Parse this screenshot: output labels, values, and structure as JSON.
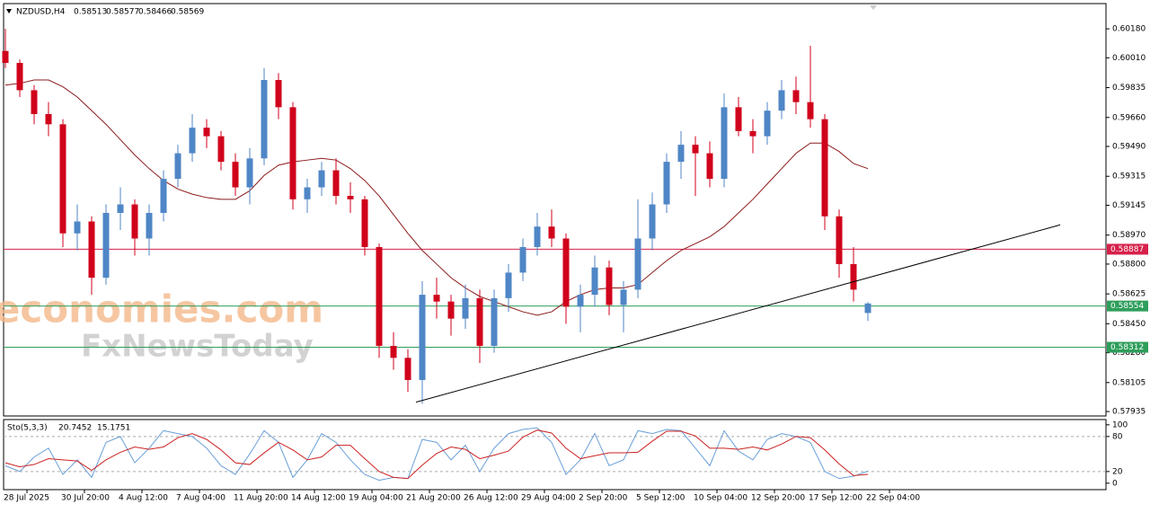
{
  "chart_data": {
    "type": "candlestick",
    "symbol": "NZDUSD,H4",
    "watermark": [
      "economies.com",
      "FxNewsToday"
    ],
    "up_color": "#4f86c6",
    "down_color": "#d0021b",
    "ohlc": [
      [
        0.6005,
        0.6018,
        0.5995,
        0.5998
      ],
      [
        0.5998,
        0.6,
        0.5978,
        0.5982
      ],
      [
        0.5982,
        0.5985,
        0.5962,
        0.5968
      ],
      [
        0.5968,
        0.5975,
        0.5955,
        0.5962
      ],
      [
        0.5962,
        0.5965,
        0.589,
        0.5898
      ],
      [
        0.5898,
        0.5915,
        0.5888,
        0.5905
      ],
      [
        0.5905,
        0.5908,
        0.5862,
        0.5872
      ],
      [
        0.5872,
        0.5915,
        0.5868,
        0.591
      ],
      [
        0.591,
        0.5925,
        0.59,
        0.5915
      ],
      [
        0.5915,
        0.5918,
        0.5885,
        0.5895
      ],
      [
        0.5895,
        0.5915,
        0.5885,
        0.591
      ],
      [
        0.591,
        0.5935,
        0.5905,
        0.593
      ],
      [
        0.593,
        0.595,
        0.5925,
        0.5945
      ],
      [
        0.5945,
        0.5968,
        0.594,
        0.596
      ],
      [
        0.596,
        0.5965,
        0.5948,
        0.5955
      ],
      [
        0.5955,
        0.5958,
        0.5935,
        0.594
      ],
      [
        0.594,
        0.5945,
        0.592,
        0.5925
      ],
      [
        0.5925,
        0.5948,
        0.5915,
        0.5942
      ],
      [
        0.5942,
        0.5995,
        0.5938,
        0.5988
      ],
      [
        0.5988,
        0.5992,
        0.5965,
        0.5972
      ],
      [
        0.5972,
        0.5975,
        0.5912,
        0.5918
      ],
      [
        0.5918,
        0.593,
        0.591,
        0.5925
      ],
      [
        0.5925,
        0.594,
        0.592,
        0.5935
      ],
      [
        0.5935,
        0.5942,
        0.5915,
        0.592
      ],
      [
        0.592,
        0.5928,
        0.591,
        0.5918
      ],
      [
        0.5918,
        0.592,
        0.5885,
        0.589
      ],
      [
        0.589,
        0.5892,
        0.5825,
        0.5832
      ],
      [
        0.5832,
        0.584,
        0.5818,
        0.5825
      ],
      [
        0.5825,
        0.583,
        0.5805,
        0.5812
      ],
      [
        0.5812,
        0.587,
        0.5798,
        0.5862
      ],
      [
        0.5862,
        0.5872,
        0.5848,
        0.5858
      ],
      [
        0.5858,
        0.5862,
        0.5838,
        0.5848
      ],
      [
        0.5848,
        0.5868,
        0.5842,
        0.586
      ],
      [
        0.586,
        0.5865,
        0.5822,
        0.5832
      ],
      [
        0.5832,
        0.5865,
        0.5828,
        0.586
      ],
      [
        0.586,
        0.588,
        0.5852,
        0.5875
      ],
      [
        0.5875,
        0.5895,
        0.587,
        0.589
      ],
      [
        0.589,
        0.591,
        0.5885,
        0.5902
      ],
      [
        0.5902,
        0.5912,
        0.589,
        0.5895
      ],
      [
        0.5895,
        0.5898,
        0.5845,
        0.5855
      ],
      [
        0.5855,
        0.5868,
        0.584,
        0.5862
      ],
      [
        0.5862,
        0.5885,
        0.5855,
        0.5878
      ],
      [
        0.5878,
        0.5882,
        0.585,
        0.5856
      ],
      [
        0.5856,
        0.587,
        0.584,
        0.5865
      ],
      [
        0.5865,
        0.5918,
        0.586,
        0.5895
      ],
      [
        0.5895,
        0.5922,
        0.5888,
        0.5915
      ],
      [
        0.5915,
        0.5945,
        0.591,
        0.594
      ],
      [
        0.594,
        0.5958,
        0.593,
        0.595
      ],
      [
        0.595,
        0.5955,
        0.592,
        0.5945
      ],
      [
        0.5945,
        0.5952,
        0.5925,
        0.593
      ],
      [
        0.593,
        0.598,
        0.5925,
        0.5972
      ],
      [
        0.5972,
        0.5978,
        0.5955,
        0.5958
      ],
      [
        0.5958,
        0.5965,
        0.5945,
        0.5955
      ],
      [
        0.5955,
        0.5975,
        0.595,
        0.597
      ],
      [
        0.597,
        0.5988,
        0.5965,
        0.5982
      ],
      [
        0.5982,
        0.599,
        0.5968,
        0.5975
      ],
      [
        0.5975,
        0.6008,
        0.596,
        0.5965
      ],
      [
        0.5965,
        0.5968,
        0.59,
        0.5908
      ],
      [
        0.5908,
        0.5912,
        0.5872,
        0.588
      ],
      [
        0.588,
        0.589,
        0.5858,
        0.5865
      ],
      [
        0.58513,
        0.58577,
        0.58466,
        0.58569
      ]
    ],
    "ma": {
      "color": "#8b1a1a",
      "values": [
        0.5985,
        0.5986,
        0.5988,
        0.5988,
        0.5984,
        0.5978,
        0.597,
        0.5962,
        0.5953,
        0.5944,
        0.5936,
        0.5929,
        0.5924,
        0.5921,
        0.5919,
        0.5918,
        0.5918,
        0.5923,
        0.5932,
        0.5938,
        0.594,
        0.5941,
        0.5942,
        0.5941,
        0.5936,
        0.5929,
        0.592,
        0.5909,
        0.5898,
        0.5888,
        0.588,
        0.5872,
        0.5866,
        0.5861,
        0.5858,
        0.5855,
        0.5852,
        0.585,
        0.5852,
        0.5858,
        0.5862,
        0.5865,
        0.5866,
        0.5866,
        0.5868,
        0.5875,
        0.5882,
        0.5888,
        0.5892,
        0.5896,
        0.5902,
        0.591,
        0.5918,
        0.5927,
        0.5936,
        0.5945,
        0.5951,
        0.5951,
        0.5946,
        0.5939,
        0.5936
      ]
    },
    "trendline": {
      "color": "#000000",
      "x": [
        28.56,
        73.38
      ],
      "y": [
        0.5799,
        0.5903
      ]
    },
    "levels": [
      {
        "value": 0.58887,
        "color": "#d6204a"
      },
      {
        "value": 0.58554,
        "color": "#2e9e5b"
      },
      {
        "value": 0.58312,
        "color": "#2e9e5b"
      }
    ],
    "xlim": [
      -0.125,
      76.5625
    ],
    "ylim": [
      0.57909,
      0.60328
    ],
    "yticks": [
      {
        "value": 0.6018,
        "label": "0.60180"
      },
      {
        "value": 0.6001,
        "label": "0.60010"
      },
      {
        "value": 0.59835,
        "label": "0.59835"
      },
      {
        "value": 0.5966,
        "label": "0.59660"
      },
      {
        "value": 0.5949,
        "label": "0.59490"
      },
      {
        "value": 0.59315,
        "label": "0.59315"
      },
      {
        "value": 0.59145,
        "label": "0.59145"
      },
      {
        "value": 0.5897,
        "label": "0.58970"
      },
      {
        "value": 0.588,
        "label": "0.58800"
      },
      {
        "value": 0.58625,
        "label": "0.58625"
      },
      {
        "value": 0.5845,
        "label": "0.58450"
      },
      {
        "value": 0.5828,
        "label": "0.58280"
      },
      {
        "value": 0.58105,
        "label": "0.58105"
      },
      {
        "value": 0.57935,
        "label": "0.57935"
      }
    ],
    "xticks": [
      {
        "value": 1.5,
        "label": "28 Jul 2025"
      },
      {
        "value": 5.5,
        "label": "30 Jul 20:00"
      },
      {
        "value": 9.5,
        "label": "4 Aug 12:00"
      },
      {
        "value": 13.5,
        "label": "7 Aug 04:00"
      },
      {
        "value": 17.5,
        "label": "11 Aug 20:00"
      },
      {
        "value": 21.5,
        "label": "14 Aug 12:00"
      },
      {
        "value": 25.5,
        "label": "19 Aug 04:00"
      },
      {
        "value": 29.5,
        "label": "21 Aug 20:00"
      },
      {
        "value": 33.5,
        "label": "26 Aug 12:00"
      },
      {
        "value": 37.5,
        "label": "29 Aug 04:00"
      },
      {
        "value": 41.5,
        "label": "2 Sep 20:00"
      },
      {
        "value": 45.5,
        "label": "5 Sep 12:00"
      },
      {
        "value": 49.5,
        "label": "10 Sep 04:00"
      },
      {
        "value": 53.5,
        "label": "12 Sep 20:00"
      },
      {
        "value": 57.5,
        "label": "17 Sep 12:00"
      },
      {
        "value": 61.5,
        "label": "22 Sep 04:00"
      }
    ],
    "stochastic": {
      "name": "Sto(5,3,3)",
      "ylim": [
        -11,
        109
      ],
      "yticks": [
        100,
        80,
        20,
        0
      ],
      "levels": [
        80,
        20
      ],
      "series": [
        {
          "color": "#6a9fd8",
          "values": [
            30,
            20,
            45,
            60,
            15,
            40,
            10,
            70,
            80,
            35,
            60,
            90,
            85,
            80,
            60,
            30,
            15,
            50,
            90,
            70,
            10,
            40,
            85,
            70,
            40,
            15,
            5,
            10,
            8,
            75,
            70,
            40,
            65,
            20,
            60,
            85,
            92,
            95,
            70,
            15,
            40,
            85,
            30,
            40,
            90,
            85,
            92,
            90,
            60,
            30,
            90,
            55,
            40,
            75,
            85,
            80,
            70,
            20,
            8,
            12,
            20.7452
          ]
        },
        {
          "color": "#cc2222",
          "values": [
            35,
            28,
            32,
            42,
            40,
            38,
            22,
            40,
            53,
            62,
            58,
            62,
            78,
            85,
            75,
            57,
            35,
            32,
            52,
            70,
            57,
            40,
            45,
            65,
            65,
            42,
            20,
            10,
            8,
            31,
            51,
            62,
            58,
            42,
            48,
            55,
            79,
            91,
            86,
            60,
            42,
            47,
            52,
            52,
            53,
            72,
            89,
            89,
            81,
            60,
            60,
            58,
            62,
            57,
            67,
            80,
            78,
            57,
            33,
            13,
            15.1751
          ]
        }
      ]
    }
  }
}
